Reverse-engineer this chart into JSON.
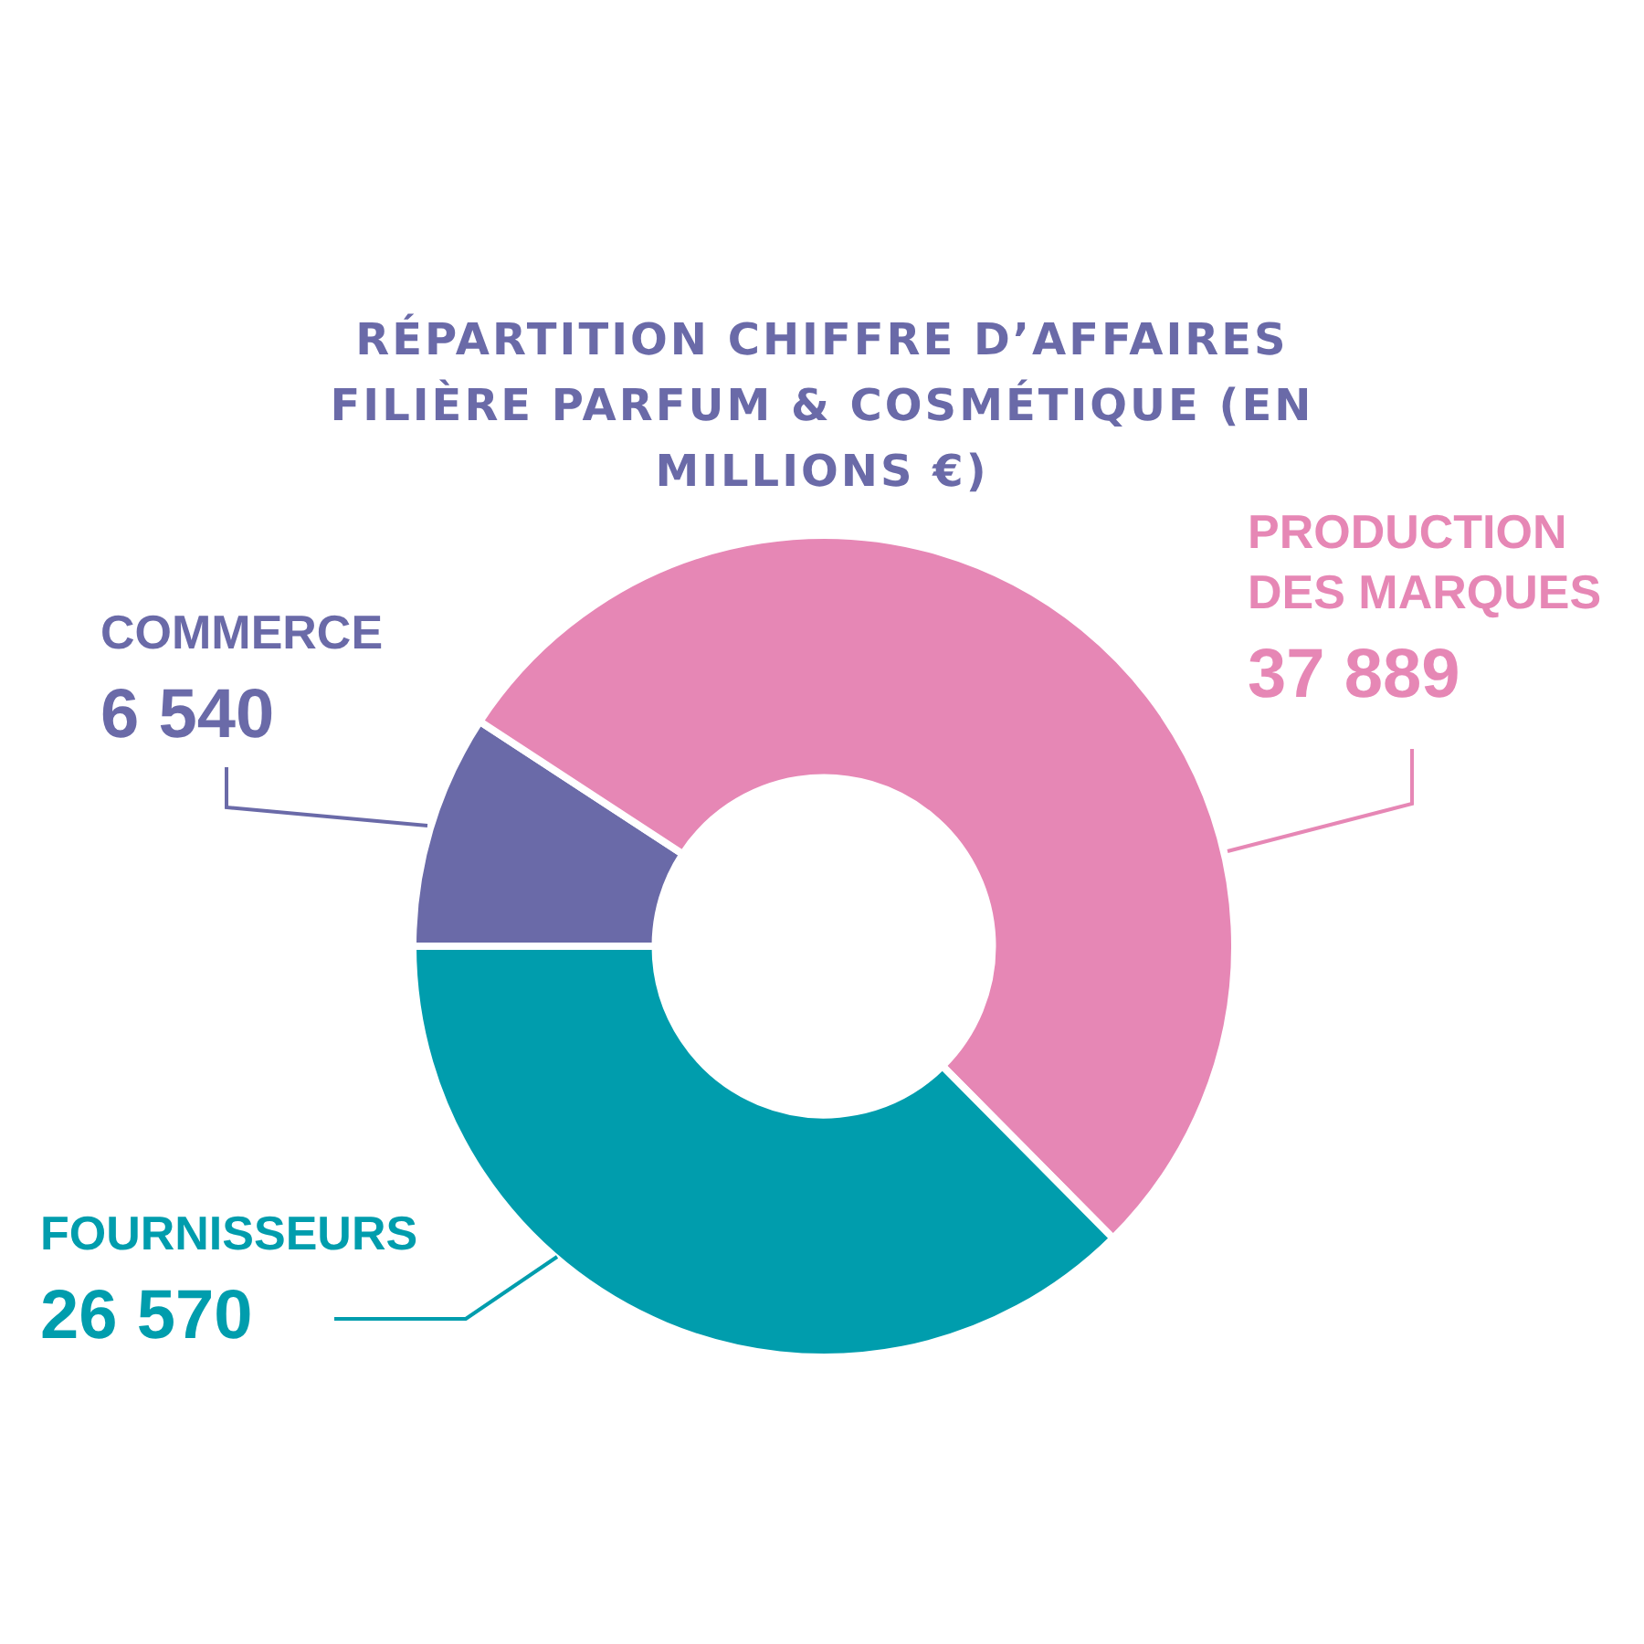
{
  "chart_data": {
    "type": "donut",
    "title": "RÉPARTITION CHIFFRE D’AFFAIRES FILIÈRE PARFUM & COSMÉTIQUE (EN MILLIONS €)",
    "categories": [
      "COMMERCE",
      "PRODUCTION DES MARQUES",
      "FOURNISSEURS"
    ],
    "values": [
      6540,
      37889,
      26570
    ],
    "value_labels": [
      "6 540",
      "37 889",
      "26 570"
    ],
    "colors": [
      "#6a6aa8",
      "#e687b5",
      "#009dad"
    ],
    "legend": false
  }
}
